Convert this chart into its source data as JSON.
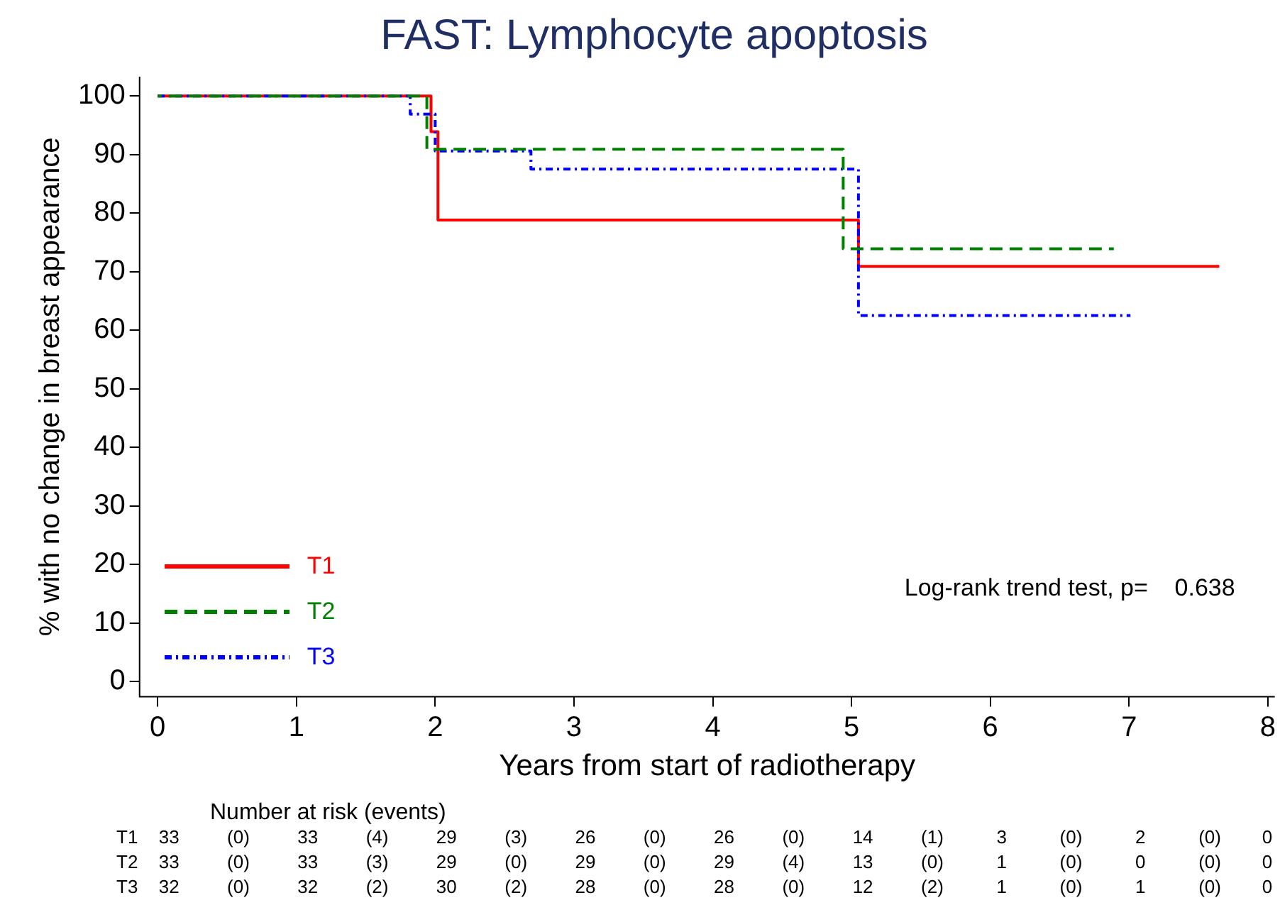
{
  "chart_data": {
    "type": "step",
    "title": "FAST: Lymphocyte apoptosis",
    "xlabel": "Years from start of radiotherapy",
    "ylabel": "% with no change in breast appearance",
    "series": [
      {
        "name": "T1",
        "color": "#ff0000",
        "line_style": "solid",
        "x": [
          0,
          1.97,
          2.02,
          5.05,
          7.65
        ],
        "values": [
          100,
          93.9,
          78.8,
          70.9,
          70.9
        ]
      },
      {
        "name": "T2",
        "color": "#008000",
        "line_style": "dashed",
        "x": [
          0,
          1.94,
          4.94,
          6.89
        ],
        "values": [
          100,
          90.9,
          73.9,
          73.9
        ]
      },
      {
        "name": "T3",
        "color": "#0000ff",
        "line_style": "dotted",
        "x": [
          0,
          1.82,
          2.0,
          2.69,
          5.05,
          7.01
        ],
        "values": [
          100,
          96.9,
          90.6,
          87.5,
          62.5,
          62.5
        ]
      }
    ],
    "xlim": [
      -0.13,
      8.05
    ],
    "xticks": [
      0,
      1,
      2,
      3,
      4,
      5,
      6,
      7,
      8
    ],
    "ylim": [
      -2.6,
      103.3
    ],
    "yticks": [
      0,
      10,
      20,
      30,
      40,
      50,
      60,
      70,
      80,
      90,
      100
    ],
    "grid": false,
    "legend": "bottom left",
    "annotations": [
      "Log-rank trend test, p=    0.638",
      "Number at risk (events)",
      "T1 33 (0) 33 (4) 29 (3) 26 (0) 26 (0) 14 (1) 3 (0) 2 (0) 0",
      "T2 33 (0) 33 (3) 29 (0) 29 (0) 29 (4) 13 (0) 1 (0) 0 (0) 0",
      "T3 32 (0) 32 (2) 30 (2) 28 (0) 28 (0) 12 (2) 1 (0) 1 (0) 0"
    ]
  }
}
